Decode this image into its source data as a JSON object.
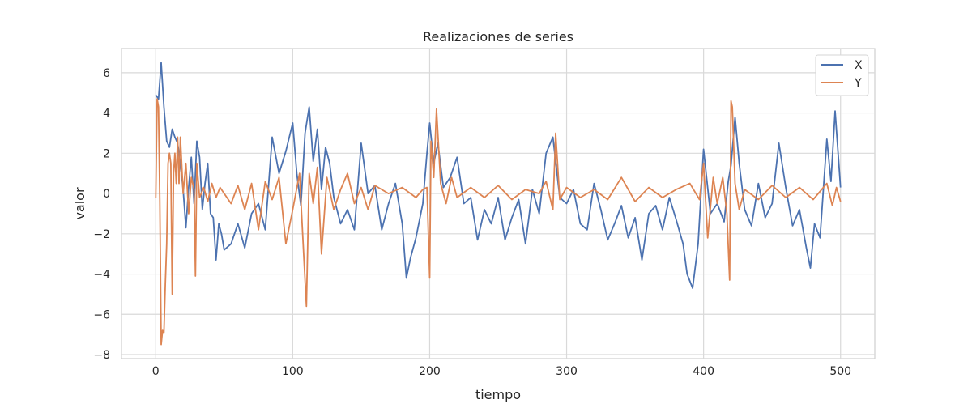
{
  "chart_data": {
    "type": "line",
    "title": "Realizaciones de series",
    "xlabel": "tiempo",
    "ylabel": "valor",
    "xlim": [
      -25,
      525
    ],
    "ylim": [
      -8.2,
      7.2
    ],
    "xticks": [
      0,
      100,
      200,
      300,
      400,
      500
    ],
    "yticks": [
      -8,
      -6,
      -4,
      -2,
      0,
      2,
      4,
      6
    ],
    "grid": true,
    "legend_position": "top-right",
    "series": [
      {
        "name": "X",
        "color": "#4c72b0",
        "x": [
          0,
          2,
          4,
          6,
          8,
          10,
          12,
          14,
          16,
          18,
          20,
          22,
          24,
          26,
          28,
          30,
          32,
          34,
          36,
          38,
          40,
          42,
          44,
          46,
          48,
          50,
          55,
          60,
          65,
          70,
          75,
          80,
          85,
          90,
          95,
          100,
          103,
          106,
          109,
          112,
          115,
          118,
          121,
          124,
          127,
          130,
          135,
          140,
          145,
          150,
          155,
          160,
          165,
          170,
          175,
          180,
          183,
          186,
          190,
          195,
          198,
          200,
          203,
          206,
          210,
          215,
          220,
          225,
          230,
          235,
          240,
          245,
          250,
          255,
          260,
          265,
          270,
          275,
          280,
          285,
          290,
          295,
          300,
          305,
          310,
          315,
          320,
          325,
          330,
          335,
          340,
          345,
          350,
          355,
          360,
          365,
          370,
          375,
          380,
          385,
          388,
          392,
          396,
          400,
          405,
          410,
          415,
          418,
          420,
          423,
          426,
          430,
          435,
          440,
          445,
          450,
          455,
          460,
          465,
          470,
          475,
          478,
          481,
          485,
          490,
          493,
          496,
          500
        ],
        "y": [
          4.9,
          4.7,
          6.5,
          4.3,
          2.6,
          2.3,
          3.2,
          2.8,
          2.5,
          1.5,
          0.2,
          -1.7,
          0.3,
          1.8,
          -0.5,
          2.6,
          1.8,
          -0.8,
          0.5,
          1.5,
          -1.0,
          -1.2,
          -3.3,
          -1.5,
          -2.0,
          -2.8,
          -2.5,
          -1.5,
          -2.7,
          -1.0,
          -0.5,
          -1.8,
          2.8,
          1.0,
          2.1,
          3.5,
          1.0,
          -0.6,
          3.0,
          4.3,
          1.6,
          3.2,
          0.2,
          2.3,
          1.5,
          -0.2,
          -1.5,
          -0.8,
          -1.8,
          2.5,
          0.0,
          0.4,
          -1.8,
          -0.5,
          0.5,
          -1.5,
          -4.2,
          -3.2,
          -2.2,
          -0.5,
          2.0,
          3.5,
          1.5,
          2.5,
          0.3,
          0.8,
          1.8,
          -0.5,
          -0.2,
          -2.3,
          -0.8,
          -1.5,
          -0.2,
          -2.3,
          -1.2,
          -0.3,
          -2.5,
          0.2,
          -1.0,
          2.0,
          2.8,
          -0.2,
          -0.5,
          0.2,
          -1.5,
          -1.8,
          0.5,
          -0.8,
          -2.3,
          -1.5,
          -0.6,
          -2.2,
          -1.2,
          -3.3,
          -1.0,
          -0.6,
          -1.8,
          -0.2,
          -1.3,
          -2.5,
          -4.0,
          -4.7,
          -2.5,
          2.2,
          -1.0,
          -0.5,
          -1.4,
          0.6,
          1.4,
          3.8,
          1.5,
          -0.8,
          -1.6,
          0.5,
          -1.2,
          -0.5,
          2.5,
          0.3,
          -1.6,
          -0.8,
          -2.7,
          -3.7,
          -1.5,
          -2.2,
          2.7,
          0.6,
          4.1,
          0.3
        ]
      },
      {
        "name": "Y",
        "color": "#dd8452",
        "x": [
          0,
          1,
          2,
          3,
          4,
          5,
          6,
          7,
          8,
          9,
          10,
          11,
          12,
          13,
          14,
          15,
          16,
          17,
          18,
          20,
          22,
          24,
          26,
          28,
          29,
          30,
          32,
          35,
          38,
          41,
          44,
          47,
          50,
          55,
          60,
          65,
          70,
          75,
          80,
          85,
          90,
          95,
          100,
          105,
          108,
          110,
          112,
          115,
          118,
          121,
          125,
          130,
          135,
          140,
          145,
          150,
          155,
          160,
          170,
          180,
          190,
          195,
          198,
          200,
          201,
          203,
          205,
          208,
          212,
          216,
          220,
          230,
          240,
          250,
          260,
          270,
          280,
          285,
          290,
          292,
          295,
          300,
          310,
          320,
          330,
          340,
          350,
          360,
          370,
          380,
          390,
          397,
          400,
          403,
          407,
          410,
          414,
          417,
          419,
          420,
          421,
          423,
          426,
          430,
          440,
          450,
          460,
          470,
          480,
          490,
          494,
          497,
          500
        ],
        "y": [
          -0.2,
          4.7,
          4.3,
          -0.3,
          -7.5,
          -6.8,
          -6.9,
          -4.5,
          -2.5,
          1.5,
          2.0,
          1.5,
          -5.0,
          1.0,
          2.0,
          0.5,
          2.8,
          0.5,
          2.8,
          0.0,
          1.5,
          -1.0,
          0.8,
          0.2,
          -4.1,
          1.5,
          -0.2,
          0.3,
          -0.4,
          0.5,
          -0.2,
          0.3,
          0.0,
          -0.5,
          0.4,
          -0.8,
          0.5,
          -1.8,
          0.6,
          -0.3,
          0.8,
          -2.5,
          -0.8,
          1.0,
          -3.0,
          -5.6,
          1.0,
          -0.5,
          1.3,
          -3.0,
          0.8,
          -0.8,
          0.2,
          1.0,
          -0.5,
          0.3,
          -0.8,
          0.4,
          0.0,
          0.3,
          -0.2,
          0.2,
          0.3,
          -4.2,
          2.6,
          0.8,
          4.2,
          0.5,
          -0.5,
          0.8,
          -0.2,
          0.3,
          -0.2,
          0.4,
          -0.3,
          0.2,
          0.0,
          0.6,
          -0.8,
          3.0,
          -0.3,
          0.3,
          -0.2,
          0.2,
          -0.3,
          0.8,
          -0.4,
          0.3,
          -0.2,
          0.2,
          0.5,
          -0.3,
          1.5,
          -2.2,
          0.8,
          -0.5,
          0.8,
          -1.0,
          -4.3,
          4.6,
          4.3,
          0.5,
          -0.8,
          0.2,
          -0.3,
          0.4,
          -0.2,
          0.3,
          -0.3,
          0.5,
          -0.6,
          0.3,
          -0.4
        ]
      }
    ]
  }
}
